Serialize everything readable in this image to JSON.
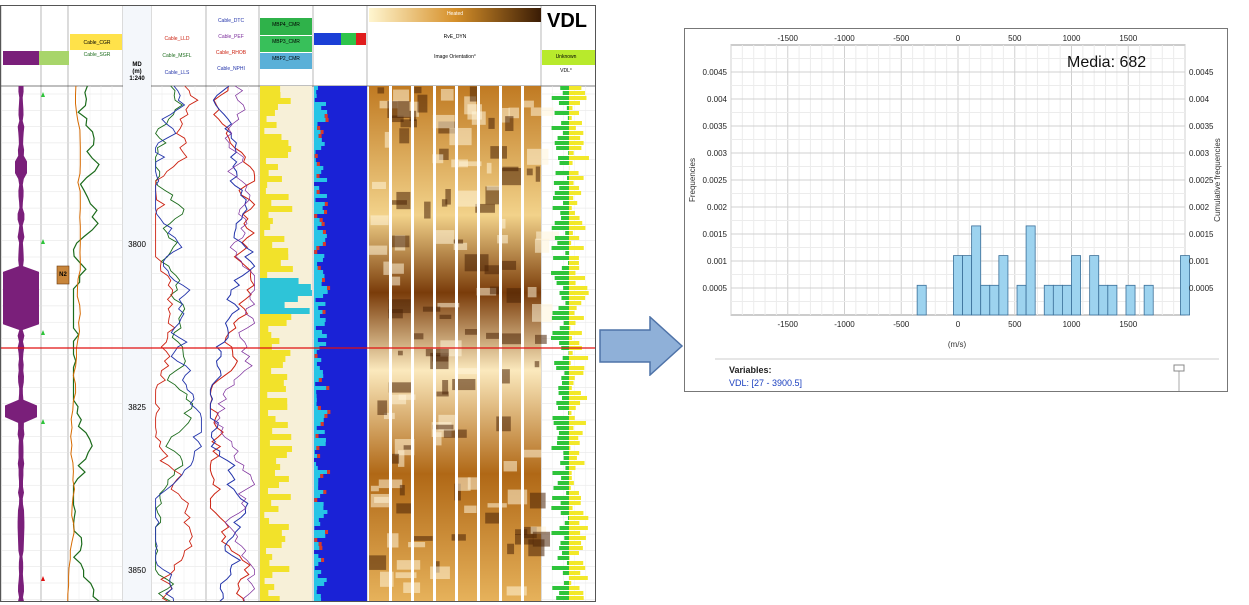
{
  "log": {
    "title": "VDL",
    "depth_header": [
      "MD",
      "(m)",
      "1:240"
    ],
    "depth_ticks": [
      "3800",
      "3825",
      "3850"
    ],
    "track_headers": {
      "gr": [
        "Cable_CGR",
        "Cable_SGR"
      ],
      "res": [
        "Cable_LLD",
        "Cable_MSFL",
        "Cable_LLS"
      ],
      "son": [
        "Cable_DTC",
        "Cable_PEF",
        "Cable_RHOB",
        "Cable_NPHI"
      ],
      "nmr": [
        "MBP4_CMR",
        "MBP3_CMR",
        "MBP2_CMR"
      ],
      "img_top": "Heated",
      "img_sub": "RvE_DYN",
      "img_orient": "Image Orientation°",
      "vdl_right": [
        "Unknown",
        "VDL°"
      ],
      "zone_label": "N2"
    }
  },
  "chart_data": {
    "type": "bar",
    "title": "",
    "annotation": "Media: 682",
    "xlabel": "(m/s)",
    "ylabel": "Frequencies",
    "y2label": "Cumulative frequencies",
    "xlim": [
      -2000,
      2000
    ],
    "ylim": [
      0,
      0.005
    ],
    "x_ticks": [
      -1500,
      -1000,
      -500,
      0,
      500,
      1000,
      1500
    ],
    "y_ticks": [
      "0.0005",
      "0.001",
      "0.0015",
      "0.002",
      "0.0025",
      "0.003",
      "0.0035",
      "0.004",
      "0.0045"
    ],
    "bin_width": 80,
    "bins": [
      {
        "x": -360,
        "value": 0.00055
      },
      {
        "x": -40,
        "value": 0.0011
      },
      {
        "x": 40,
        "value": 0.0011
      },
      {
        "x": 120,
        "value": 0.00165
      },
      {
        "x": 200,
        "value": 0.00055
      },
      {
        "x": 280,
        "value": 0.00055
      },
      {
        "x": 360,
        "value": 0.0011
      },
      {
        "x": 520,
        "value": 0.00055
      },
      {
        "x": 600,
        "value": 0.00165
      },
      {
        "x": 760,
        "value": 0.00055
      },
      {
        "x": 840,
        "value": 0.00055
      },
      {
        "x": 920,
        "value": 0.00055
      },
      {
        "x": 1000,
        "value": 0.0011
      },
      {
        "x": 1160,
        "value": 0.0011
      },
      {
        "x": 1240,
        "value": 0.00055
      },
      {
        "x": 1320,
        "value": 0.00055
      },
      {
        "x": 1480,
        "value": 0.00055
      },
      {
        "x": 1640,
        "value": 0.00055
      },
      {
        "x": 1960,
        "value": 0.0011
      }
    ],
    "grid": true,
    "variables_label": "Variables:",
    "variables_value": "VDL: [27 - 3900.5]"
  }
}
